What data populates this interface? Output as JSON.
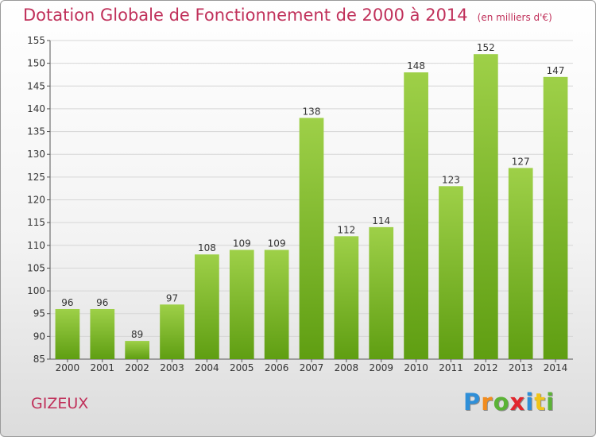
{
  "title": "Dotation Globale de Fonctionnement de 2000 à 2014",
  "subtitle": "(en milliers d'€)",
  "place": "GIZEUX",
  "logo": {
    "letters": [
      "P",
      "r",
      "o",
      "x",
      "i",
      "t",
      "i"
    ],
    "colors": [
      "#2f8fd8",
      "#f28c1e",
      "#5bb336",
      "#e2262d",
      "#2f8fd8",
      "#f0c419",
      "#5bb336"
    ]
  },
  "chart_data": {
    "type": "bar",
    "title": "Dotation Globale de Fonctionnement de 2000 à 2014",
    "subtitle": "(en milliers d'€)",
    "xlabel": "",
    "ylabel": "",
    "categories": [
      "2000",
      "2001",
      "2002",
      "2003",
      "2004",
      "2005",
      "2006",
      "2007",
      "2008",
      "2009",
      "2010",
      "2011",
      "2012",
      "2013",
      "2014"
    ],
    "values": [
      96,
      96,
      89,
      97,
      108,
      109,
      109,
      138,
      112,
      114,
      148,
      123,
      152,
      127,
      147
    ],
    "ylim": [
      85,
      155
    ],
    "yticks": [
      85,
      90,
      95,
      100,
      105,
      110,
      115,
      120,
      125,
      130,
      135,
      140,
      145,
      150,
      155
    ],
    "grid": "horizontal",
    "colors": {
      "bar_top": "#9ed048",
      "bar_bottom": "#5f9e12",
      "text": "#c0305a"
    }
  }
}
